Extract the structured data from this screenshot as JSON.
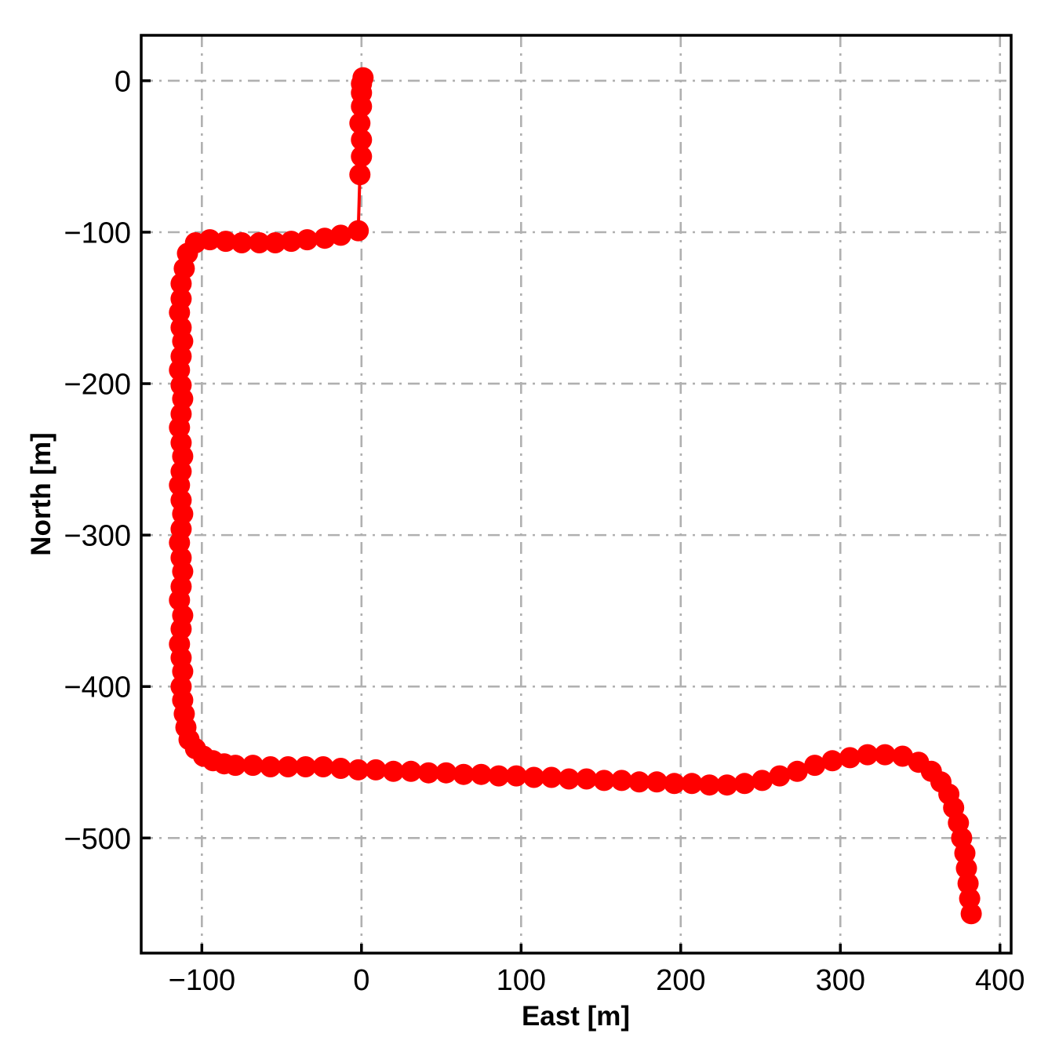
{
  "figure": {
    "background": "#ffffff",
    "axis_color": "#000000",
    "grid_color": "#b0b0b0",
    "marker_color": "#ff0000",
    "line_color": "#ff0000"
  },
  "chart_data": {
    "type": "scatter",
    "title": "",
    "xlabel": "East [m]",
    "ylabel": "North [m]",
    "xlim": [
      -138,
      407
    ],
    "ylim": [
      -576,
      30
    ],
    "x_ticks": [
      -100,
      0,
      100,
      200,
      300,
      400
    ],
    "y_ticks": [
      0,
      -100,
      -200,
      -300,
      -400,
      -500
    ],
    "grid": true,
    "grid_style": "dash-dot",
    "legend": false,
    "series": [
      {
        "name": "vehicle-trajectory",
        "marker": "circle",
        "color": "#ff0000",
        "points": [
          [
            1,
            2
          ],
          [
            0,
            -2
          ],
          [
            0,
            -8
          ],
          [
            0,
            -17
          ],
          [
            -1,
            -28
          ],
          [
            0,
            -39
          ],
          [
            0,
            -50
          ],
          [
            -1,
            -62
          ],
          [
            -2,
            -99
          ],
          [
            -13,
            -102
          ],
          [
            -23,
            -104
          ],
          [
            -34,
            -105
          ],
          [
            -44,
            -106
          ],
          [
            -54,
            -107
          ],
          [
            -64,
            -107
          ],
          [
            -75,
            -107
          ],
          [
            -85,
            -106
          ],
          [
            -95,
            -105
          ],
          [
            -104,
            -107
          ],
          [
            -109,
            -114
          ],
          [
            -111,
            -124
          ],
          [
            -113,
            -134
          ],
          [
            -113,
            -144
          ],
          [
            -114,
            -153
          ],
          [
            -113,
            -163
          ],
          [
            -112,
            -172
          ],
          [
            -113,
            -182
          ],
          [
            -114,
            -191
          ],
          [
            -113,
            -201
          ],
          [
            -112,
            -210
          ],
          [
            -113,
            -220
          ],
          [
            -114,
            -229
          ],
          [
            -113,
            -239
          ],
          [
            -112,
            -248
          ],
          [
            -113,
            -258
          ],
          [
            -114,
            -267
          ],
          [
            -113,
            -277
          ],
          [
            -112,
            -286
          ],
          [
            -113,
            -296
          ],
          [
            -114,
            -305
          ],
          [
            -113,
            -315
          ],
          [
            -112,
            -324
          ],
          [
            -113,
            -334
          ],
          [
            -114,
            -343
          ],
          [
            -112,
            -353
          ],
          [
            -113,
            -362
          ],
          [
            -114,
            -372
          ],
          [
            -113,
            -381
          ],
          [
            -112,
            -390
          ],
          [
            -113,
            -400
          ],
          [
            -112,
            -409
          ],
          [
            -111,
            -418
          ],
          [
            -110,
            -427
          ],
          [
            -108,
            -435
          ],
          [
            -104,
            -441
          ],
          [
            -99,
            -446
          ],
          [
            -93,
            -449
          ],
          [
            -86,
            -451
          ],
          [
            -79,
            -452
          ],
          [
            -68,
            -452
          ],
          [
            -57,
            -453
          ],
          [
            -46,
            -453
          ],
          [
            -35,
            -453
          ],
          [
            -24,
            -453
          ],
          [
            -13,
            -454
          ],
          [
            -2,
            -455
          ],
          [
            9,
            -455
          ],
          [
            20,
            -456
          ],
          [
            31,
            -456
          ],
          [
            42,
            -457
          ],
          [
            53,
            -457
          ],
          [
            64,
            -458
          ],
          [
            75,
            -458
          ],
          [
            86,
            -459
          ],
          [
            97,
            -459
          ],
          [
            108,
            -460
          ],
          [
            119,
            -460
          ],
          [
            130,
            -461
          ],
          [
            141,
            -461
          ],
          [
            152,
            -462
          ],
          [
            163,
            -462
          ],
          [
            174,
            -463
          ],
          [
            185,
            -463
          ],
          [
            196,
            -464
          ],
          [
            207,
            -464
          ],
          [
            218,
            -465
          ],
          [
            229,
            -465
          ],
          [
            240,
            -464
          ],
          [
            251,
            -462
          ],
          [
            262,
            -459
          ],
          [
            273,
            -456
          ],
          [
            284,
            -452
          ],
          [
            295,
            -449
          ],
          [
            306,
            -447
          ],
          [
            317,
            -445
          ],
          [
            328,
            -445
          ],
          [
            339,
            -446
          ],
          [
            349,
            -450
          ],
          [
            357,
            -456
          ],
          [
            363,
            -463
          ],
          [
            368,
            -471
          ],
          [
            371,
            -480
          ],
          [
            374,
            -490
          ],
          [
            376,
            -500
          ],
          [
            378,
            -510
          ],
          [
            379,
            -520
          ],
          [
            380,
            -530
          ],
          [
            381,
            -540
          ],
          [
            382,
            -550
          ]
        ]
      }
    ]
  }
}
